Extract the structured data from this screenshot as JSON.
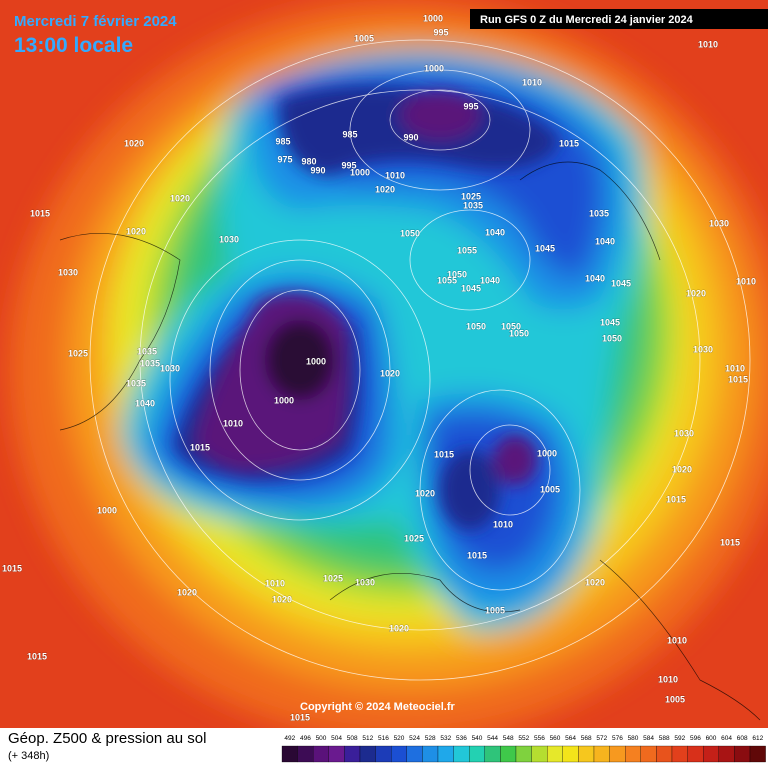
{
  "header": {
    "valid_date": "Mercredi 7 février 2024",
    "local_time": "13:00 locale",
    "run_info": "Run GFS 0 Z du Mercredi 24 janvier 2024"
  },
  "footer": {
    "copyright": "Copyright © 2024 Meteociel.fr",
    "product": "Géop. Z500 & pression au sol",
    "lead_time": "(+ 348h)"
  },
  "colorbar": {
    "labels": [
      492,
      496,
      500,
      504,
      508,
      512,
      516,
      520,
      524,
      528,
      532,
      536,
      540,
      544,
      548,
      552,
      556,
      560,
      564,
      568,
      572,
      576,
      580,
      584,
      588,
      592,
      596,
      600,
      604,
      608,
      612
    ]
  },
  "isobar_labels": [
    1000,
    995,
    1005,
    1010,
    1000,
    1010,
    995,
    985,
    985,
    990,
    1015,
    1020,
    975,
    980,
    990,
    995,
    1000,
    1010,
    1020,
    1025,
    1035,
    1020,
    1015,
    1035,
    1030,
    1020,
    1030,
    1050,
    1040,
    1040,
    1055,
    1045,
    1030,
    1050,
    1055,
    1040,
    1045,
    1040,
    1045,
    1020,
    1010,
    1050,
    1050,
    1050,
    1045,
    1050,
    1025,
    1035,
    1035,
    1030,
    1000,
    1020,
    1035,
    1000,
    1040,
    1030,
    1010,
    1015,
    1015,
    1010,
    1015,
    1000,
    1030,
    1020,
    1015,
    1005,
    1020,
    1010,
    1000,
    1025,
    1015,
    1015,
    1015,
    1025,
    1030,
    1010,
    1020,
    1020,
    1020,
    1005,
    1020,
    1015,
    1010,
    1010,
    1005,
    1015
  ]
}
